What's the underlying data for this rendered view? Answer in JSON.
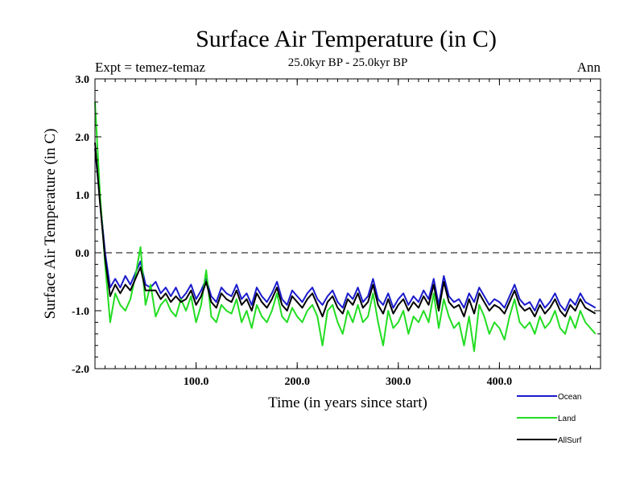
{
  "chart_data": {
    "type": "line",
    "title": "Surface Air Temperature (in C)",
    "subtitle": "25.0kyr BP - 25.0kyr BP",
    "experiment_label": "Expt = temez-temaz",
    "period_label": "Ann",
    "xlabel": "Time (in years since start)",
    "ylabel": "Surface Air Temperature (in C)",
    "xlim": [
      0,
      500
    ],
    "ylim": [
      -2.0,
      3.0
    ],
    "x_tick_labels": [
      "100.0",
      "200.0",
      "300.0",
      "400.0"
    ],
    "y_tick_labels": [
      "3.0",
      "2.0",
      "1.0",
      "0.0",
      "-1.0",
      "-2.0"
    ],
    "reference_line": {
      "value": 0.0,
      "style": "dashed"
    },
    "x_step": 5,
    "series": [
      {
        "name": "Ocean",
        "color": "#1a1acc",
        "values": [
          1.8,
          0.9,
          0.0,
          -0.6,
          -0.45,
          -0.6,
          -0.4,
          -0.55,
          -0.35,
          -0.15,
          -0.55,
          -0.6,
          -0.5,
          -0.7,
          -0.6,
          -0.75,
          -0.6,
          -0.8,
          -0.7,
          -0.55,
          -0.8,
          -0.65,
          -0.45,
          -0.75,
          -0.85,
          -0.6,
          -0.7,
          -0.75,
          -0.55,
          -0.8,
          -0.7,
          -0.9,
          -0.6,
          -0.75,
          -0.85,
          -0.7,
          -0.5,
          -0.8,
          -0.9,
          -0.65,
          -0.75,
          -0.85,
          -0.7,
          -0.6,
          -0.8,
          -0.9,
          -0.75,
          -0.65,
          -0.85,
          -0.95,
          -0.7,
          -0.8,
          -0.6,
          -0.85,
          -0.75,
          -0.45,
          -0.8,
          -0.9,
          -0.7,
          -0.95,
          -0.8,
          -0.7,
          -0.9,
          -0.75,
          -0.85,
          -0.65,
          -0.8,
          -0.45,
          -0.9,
          -0.4,
          -0.75,
          -0.85,
          -0.8,
          -0.95,
          -0.7,
          -0.85,
          -0.6,
          -0.75,
          -0.9,
          -0.8,
          -0.85,
          -0.95,
          -0.75,
          -0.55,
          -0.8,
          -0.9,
          -0.85,
          -1.0,
          -0.8,
          -0.95,
          -0.85,
          -0.7,
          -0.9,
          -1.0,
          -0.8,
          -0.9,
          -0.7,
          -0.85,
          -0.9,
          -0.95
        ]
      },
      {
        "name": "Land",
        "color": "#22dd22",
        "values": [
          2.6,
          1.0,
          -0.2,
          -1.2,
          -0.7,
          -0.9,
          -1.0,
          -0.8,
          -0.4,
          0.1,
          -0.9,
          -0.55,
          -1.1,
          -0.9,
          -0.8,
          -1.0,
          -1.1,
          -0.8,
          -1.0,
          -0.75,
          -1.2,
          -0.9,
          -0.3,
          -1.1,
          -1.2,
          -0.9,
          -1.0,
          -1.05,
          -0.8,
          -1.2,
          -1.0,
          -1.3,
          -0.9,
          -1.1,
          -1.2,
          -1.0,
          -0.7,
          -1.1,
          -1.2,
          -0.95,
          -1.1,
          -1.2,
          -1.0,
          -0.9,
          -1.1,
          -1.6,
          -1.0,
          -0.9,
          -1.2,
          -1.4,
          -1.0,
          -1.2,
          -0.9,
          -1.2,
          -1.1,
          -0.7,
          -1.2,
          -1.6,
          -1.0,
          -1.3,
          -1.2,
          -1.0,
          -1.4,
          -1.1,
          -1.2,
          -1.0,
          -1.2,
          -0.7,
          -1.3,
          -0.8,
          -1.1,
          -1.3,
          -1.2,
          -1.6,
          -1.1,
          -1.7,
          -0.9,
          -1.1,
          -1.4,
          -1.2,
          -1.3,
          -1.5,
          -1.1,
          -0.8,
          -1.2,
          -1.3,
          -1.2,
          -1.4,
          -1.1,
          -1.3,
          -1.2,
          -1.0,
          -1.3,
          -1.4,
          -1.1,
          -1.3,
          -1.0,
          -1.2,
          -1.3,
          -1.4
        ]
      },
      {
        "name": "AllSurf",
        "color": "#000000",
        "values": [
          1.9,
          0.85,
          -0.1,
          -0.75,
          -0.55,
          -0.7,
          -0.55,
          -0.65,
          -0.45,
          -0.25,
          -0.65,
          -0.65,
          -0.65,
          -0.8,
          -0.7,
          -0.85,
          -0.75,
          -0.85,
          -0.8,
          -0.65,
          -0.9,
          -0.75,
          -0.5,
          -0.85,
          -0.95,
          -0.7,
          -0.8,
          -0.85,
          -0.65,
          -0.9,
          -0.8,
          -1.0,
          -0.7,
          -0.85,
          -0.95,
          -0.8,
          -0.6,
          -0.9,
          -1.0,
          -0.75,
          -0.85,
          -0.95,
          -0.8,
          -0.7,
          -0.9,
          -1.1,
          -0.85,
          -0.75,
          -0.95,
          -1.05,
          -0.8,
          -0.9,
          -0.7,
          -0.95,
          -0.85,
          -0.55,
          -0.9,
          -1.05,
          -0.8,
          -1.05,
          -0.9,
          -0.8,
          -1.0,
          -0.85,
          -0.95,
          -0.75,
          -0.9,
          -0.55,
          -1.0,
          -0.5,
          -0.85,
          -0.95,
          -0.9,
          -1.1,
          -0.8,
          -1.05,
          -0.7,
          -0.85,
          -1.0,
          -0.9,
          -0.95,
          -1.05,
          -0.85,
          -0.65,
          -0.9,
          -1.0,
          -0.95,
          -1.1,
          -0.9,
          -1.05,
          -0.95,
          -0.8,
          -1.0,
          -1.1,
          -0.9,
          -1.0,
          -0.8,
          -0.95,
          -1.0,
          -1.05
        ]
      }
    ]
  }
}
